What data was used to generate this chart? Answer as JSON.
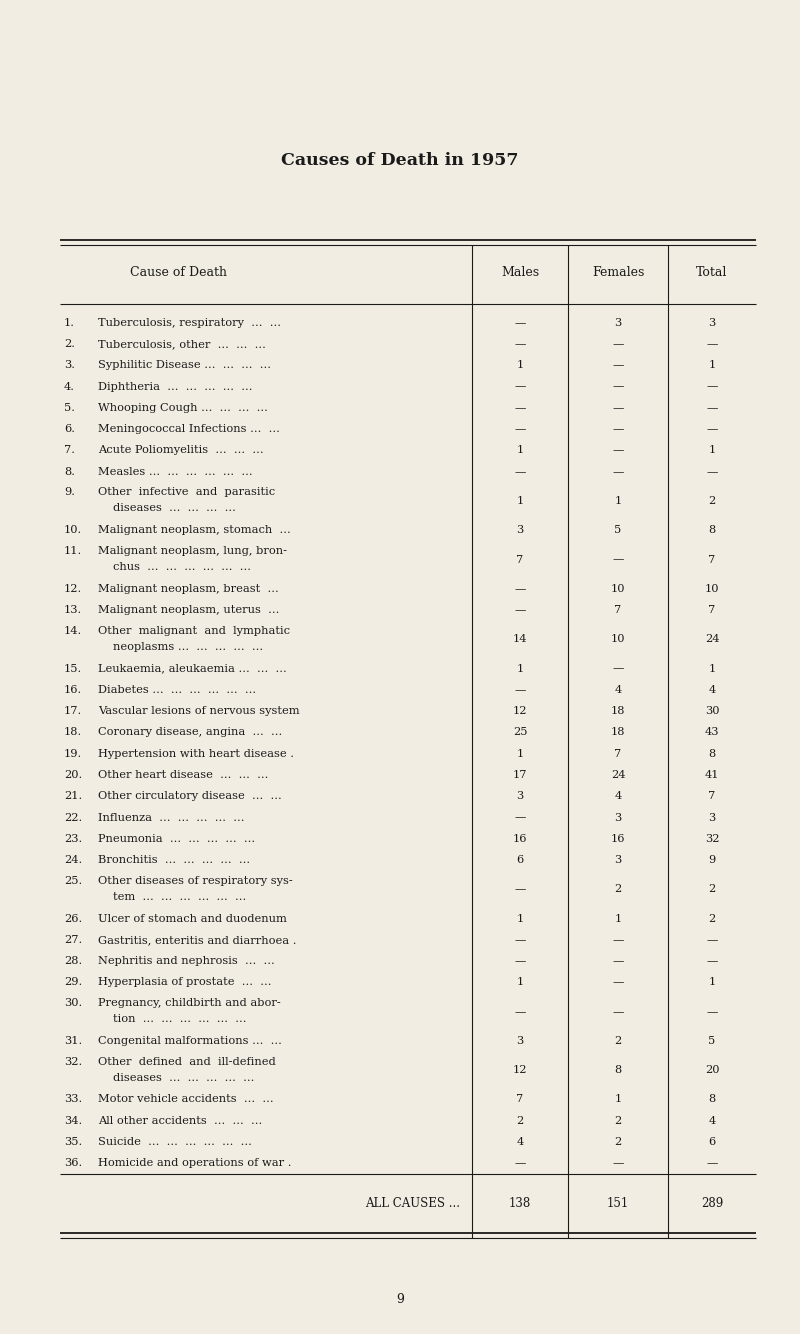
{
  "title": "Causes of Death in 1957",
  "col_headers": [
    "Cause of Death",
    "Males",
    "Females",
    "Total"
  ],
  "rows": [
    {
      "num": "1.",
      "cause": "Tuberculosis, respiratory  ...  ...",
      "cause2": "",
      "males": "—",
      "females": "3",
      "total": "3"
    },
    {
      "num": "2.",
      "cause": "Tuberculosis, other  ...  ...  ...",
      "cause2": "",
      "males": "—",
      "females": "—",
      "total": "—"
    },
    {
      "num": "3.",
      "cause": "Syphilitic Disease ...  ...  ...  ...",
      "cause2": "",
      "males": "1",
      "females": "—",
      "total": "1"
    },
    {
      "num": "4.",
      "cause": "Diphtheria  ...  ...  ...  ...  ...",
      "cause2": "",
      "males": "—",
      "females": "—",
      "total": "—"
    },
    {
      "num": "5.",
      "cause": "Whooping Cough ...  ...  ...  ...",
      "cause2": "",
      "males": "—",
      "females": "—",
      "total": "—"
    },
    {
      "num": "6.",
      "cause": "Meningococcal Infections ...  ...",
      "cause2": "",
      "males": "—",
      "females": "—",
      "total": "—"
    },
    {
      "num": "7.",
      "cause": "Acute Poliomyelitis  ...  ...  ...",
      "cause2": "",
      "males": "1",
      "females": "—",
      "total": "1"
    },
    {
      "num": "8.",
      "cause": "Measles ...  ...  ...  ...  ...  ...",
      "cause2": "",
      "males": "—",
      "females": "—",
      "total": "—"
    },
    {
      "num": "9.",
      "cause": "Other  infective  and  parasitic",
      "cause2": "    diseases  ...  ...  ...  ...",
      "males": "1",
      "females": "1",
      "total": "2"
    },
    {
      "num": "10.",
      "cause": "Malignant neoplasm, stomach  ...",
      "cause2": "",
      "males": "3",
      "females": "5",
      "total": "8"
    },
    {
      "num": "11.",
      "cause": "Malignant neoplasm, lung, bron-",
      "cause2": "    chus  ...  ...  ...  ...  ...  ...",
      "males": "7",
      "females": "—",
      "total": "7"
    },
    {
      "num": "12.",
      "cause": "Malignant neoplasm, breast  ...",
      "cause2": "",
      "males": "—",
      "females": "10",
      "total": "10"
    },
    {
      "num": "13.",
      "cause": "Malignant neoplasm, uterus  ...",
      "cause2": "",
      "males": "—",
      "females": "7",
      "total": "7"
    },
    {
      "num": "14.",
      "cause": "Other  malignant  and  lymphatic",
      "cause2": "    neoplasms ...  ...  ...  ...  ...",
      "males": "14",
      "females": "10",
      "total": "24"
    },
    {
      "num": "15.",
      "cause": "Leukaemia, aleukaemia ...  ...  ...",
      "cause2": "",
      "males": "1",
      "females": "—",
      "total": "1"
    },
    {
      "num": "16.",
      "cause": "Diabetes ...  ...  ...  ...  ...  ...",
      "cause2": "",
      "males": "—",
      "females": "4",
      "total": "4"
    },
    {
      "num": "17.",
      "cause": "Vascular lesions of nervous system",
      "cause2": "",
      "males": "12",
      "females": "18",
      "total": "30"
    },
    {
      "num": "18.",
      "cause": "Coronary disease, angina  ...  ...",
      "cause2": "",
      "males": "25",
      "females": "18",
      "total": "43"
    },
    {
      "num": "19.",
      "cause": "Hypertension with heart disease .",
      "cause2": "",
      "males": "1",
      "females": "7",
      "total": "8"
    },
    {
      "num": "20.",
      "cause": "Other heart disease  ...  ...  ...",
      "cause2": "",
      "males": "17",
      "females": "24",
      "total": "41"
    },
    {
      "num": "21.",
      "cause": "Other circulatory disease  ...  ...",
      "cause2": "",
      "males": "3",
      "females": "4",
      "total": "7"
    },
    {
      "num": "22.",
      "cause": "Influenza  ...  ...  ...  ...  ...",
      "cause2": "",
      "males": "—",
      "females": "3",
      "total": "3"
    },
    {
      "num": "23.",
      "cause": "Pneumonia  ...  ...  ...  ...  ...",
      "cause2": "",
      "males": "16",
      "females": "16",
      "total": "32"
    },
    {
      "num": "24.",
      "cause": "Bronchitis  ...  ...  ...  ...  ...",
      "cause2": "",
      "males": "6",
      "females": "3",
      "total": "9"
    },
    {
      "num": "25.",
      "cause": "Other diseases of respiratory sys-",
      "cause2": "    tem  ...  ...  ...  ...  ...  ...",
      "males": "—",
      "females": "2",
      "total": "2"
    },
    {
      "num": "26.",
      "cause": "Ulcer of stomach and duodenum",
      "cause2": "",
      "males": "1",
      "females": "1",
      "total": "2"
    },
    {
      "num": "27.",
      "cause": "Gastritis, enteritis and diarrhoea .",
      "cause2": "",
      "males": "—",
      "females": "—",
      "total": "—"
    },
    {
      "num": "28.",
      "cause": "Nephritis and nephrosis  ...  ...",
      "cause2": "",
      "males": "—",
      "females": "—",
      "total": "—"
    },
    {
      "num": "29.",
      "cause": "Hyperplasia of prostate  ...  ...",
      "cause2": "",
      "males": "1",
      "females": "—",
      "total": "1"
    },
    {
      "num": "30.",
      "cause": "Pregnancy, childbirth and abor-",
      "cause2": "    tion  ...  ...  ...  ...  ...  ...",
      "males": "—",
      "females": "—",
      "total": "—"
    },
    {
      "num": "31.",
      "cause": "Congenital malformations ...  ...",
      "cause2": "",
      "males": "3",
      "females": "2",
      "total": "5"
    },
    {
      "num": "32.",
      "cause": "Other  defined  and  ill-defined",
      "cause2": "    diseases  ...  ...  ...  ...  ...",
      "males": "12",
      "females": "8",
      "total": "20"
    },
    {
      "num": "33.",
      "cause": "Motor vehicle accidents  ...  ...",
      "cause2": "",
      "males": "7",
      "females": "1",
      "total": "8"
    },
    {
      "num": "34.",
      "cause": "All other accidents  ...  ...  ...",
      "cause2": "",
      "males": "2",
      "females": "2",
      "total": "4"
    },
    {
      "num": "35.",
      "cause": "Suicide  ...  ...  ...  ...  ...  ...",
      "cause2": "",
      "males": "4",
      "females": "2",
      "total": "6"
    },
    {
      "num": "36.",
      "cause": "Homicide and operations of war .",
      "cause2": "",
      "males": "—",
      "females": "—",
      "total": "—"
    }
  ],
  "footer_label": "ALL CAUSES ...",
  "footer_males": "138",
  "footer_females": "151",
  "footer_total": "289",
  "page_number": "9",
  "bg_color": "#f2ede2",
  "text_color": "#1a1a1a",
  "title_fontsize": 12.5,
  "header_fontsize": 9.0,
  "body_fontsize": 8.2,
  "footer_fontsize": 8.5
}
